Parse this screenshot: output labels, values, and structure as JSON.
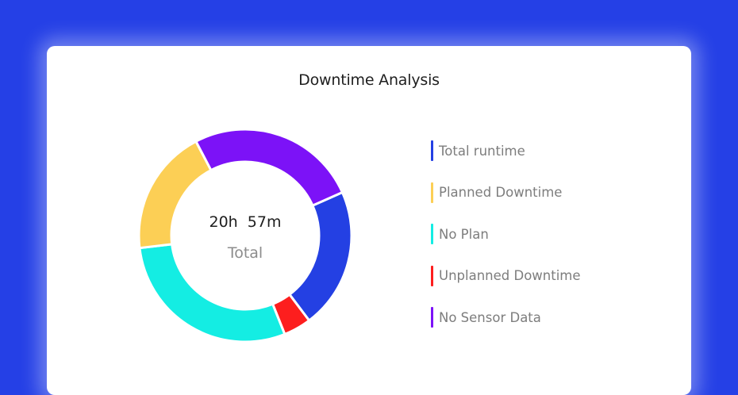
{
  "card": {
    "title": "Downtime Analysis"
  },
  "center": {
    "value": "20h  57m",
    "label": "Total"
  },
  "legend": [
    {
      "label": "Total runtime",
      "color": "#2440e3"
    },
    {
      "label": "Planned Downtime",
      "color": "#fccf55"
    },
    {
      "label": "No Plan",
      "color": "#14ede3"
    },
    {
      "label": "Unplanned Downtime",
      "color": "#fd1e1e"
    },
    {
      "label": "No Sensor Data",
      "color": "#7c12f7"
    }
  ],
  "chart_data": {
    "type": "pie",
    "title": "Downtime Analysis",
    "subtype": "donut",
    "center_text": "20h 57m Total",
    "start_angle_deg": 66,
    "categories": [
      "Total runtime",
      "Unplanned Downtime",
      "No Plan",
      "Planned Downtime",
      "No Sensor Data"
    ],
    "values": [
      21.4,
      4.2,
      29.2,
      19.2,
      26.0
    ],
    "unit": "percent (estimated from arc angles)",
    "colors": [
      "#2440e3",
      "#fd1e1e",
      "#14ede3",
      "#fccf55",
      "#7c12f7"
    ],
    "legend_order": [
      "Total runtime",
      "Planned Downtime",
      "No Plan",
      "Unplanned Downtime",
      "No Sensor Data"
    ],
    "legend_position": "right"
  }
}
